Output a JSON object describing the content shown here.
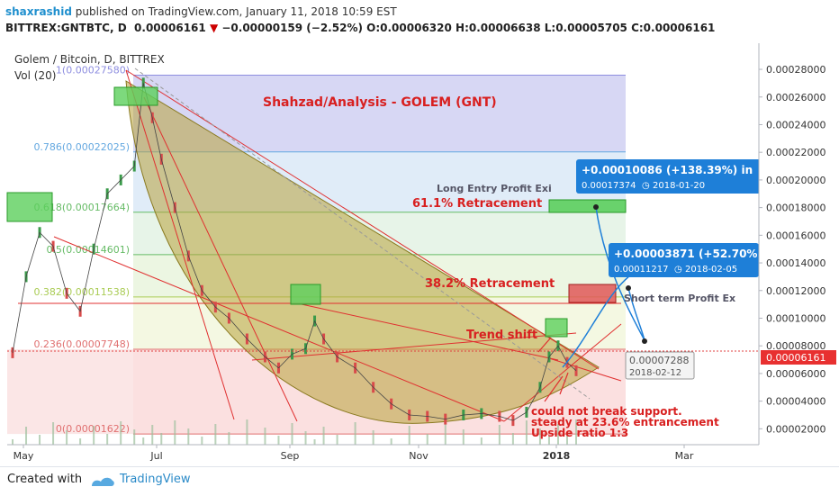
{
  "header": {
    "author": "shaxrashid",
    "published_text": "published on TradingView.com, January 11, 2018 10:59 EST",
    "symbol": "BITTREX:GNTBTC, D",
    "last_price": "0.00006161",
    "change": "−0.00000159 (−2.52%)",
    "ohlc": "O:0.00006320 H:0.00006638 L:0.00005705 C:0.00006161"
  },
  "footer": {
    "created_with": "Created with",
    "brand": "TradingView"
  },
  "chart_data": {
    "type": "line",
    "title": "Shahzad/Analysis - GOLEM  (GNT)",
    "series_label": "Golem / Bitcoin, D, BITTREX",
    "volume_label": "Vol (20)",
    "xlabel": "",
    "ylabel": "",
    "x_ticks": [
      "May",
      "Jul",
      "Sep",
      "Nov",
      "2018",
      "Mar"
    ],
    "y_ticks": [
      "0.00028000",
      "0.00026000",
      "0.00024000",
      "0.00022000",
      "0.00020000",
      "0.00018000",
      "0.00016000",
      "0.00014000",
      "0.00012000",
      "0.00010000",
      "0.00008000",
      "0.00006000",
      "0.00004000",
      "0.00002000"
    ],
    "ylim": [
      8.5e-06,
      0.000295
    ],
    "current_price_label": "0.00006161",
    "fib_levels": [
      {
        "label": "1(0.00027580)",
        "value": 0.0002758,
        "color": "#8e8ee0"
      },
      {
        "label": "0.786(0.00022025)",
        "value": 0.00022025,
        "color": "#64a8e0"
      },
      {
        "label": "0.618(0.00017664)",
        "value": 0.00017664,
        "color": "#66bb66"
      },
      {
        "label": "0.5(0.00014601)",
        "value": 0.00014601,
        "color": "#66bb66"
      },
      {
        "label": "0.382(0.00011538)",
        "value": 0.00011538,
        "color": "#aacc55"
      },
      {
        "label": "0.236(0.00007748)",
        "value": 7.748e-05,
        "color": "#e07070"
      },
      {
        "label": "0(0.00001622)",
        "value": 1.622e-05,
        "color": "#e07070"
      }
    ],
    "price_series": [
      {
        "x": 0,
        "y": 7.5e-05
      },
      {
        "x": 6,
        "y": 0.00013
      },
      {
        "x": 12,
        "y": 0.000162
      },
      {
        "x": 18,
        "y": 0.000152
      },
      {
        "x": 24,
        "y": 0.000118
      },
      {
        "x": 30,
        "y": 0.000105
      },
      {
        "x": 36,
        "y": 0.00015
      },
      {
        "x": 42,
        "y": 0.00019
      },
      {
        "x": 48,
        "y": 0.0002
      },
      {
        "x": 54,
        "y": 0.00021
      },
      {
        "x": 58,
        "y": 0.00027
      },
      {
        "x": 62,
        "y": 0.000245
      },
      {
        "x": 66,
        "y": 0.000215
      },
      {
        "x": 72,
        "y": 0.00018
      },
      {
        "x": 78,
        "y": 0.000145
      },
      {
        "x": 84,
        "y": 0.00012
      },
      {
        "x": 90,
        "y": 0.000108
      },
      {
        "x": 96,
        "y": 0.0001
      },
      {
        "x": 104,
        "y": 8.5e-05
      },
      {
        "x": 112,
        "y": 7.2e-05
      },
      {
        "x": 118,
        "y": 6.4e-05
      },
      {
        "x": 124,
        "y": 7.4e-05
      },
      {
        "x": 130,
        "y": 7.8e-05
      },
      {
        "x": 134,
        "y": 9.8e-05
      },
      {
        "x": 138,
        "y": 8.5e-05
      },
      {
        "x": 144,
        "y": 7.2e-05
      },
      {
        "x": 152,
        "y": 6.4e-05
      },
      {
        "x": 160,
        "y": 5e-05
      },
      {
        "x": 168,
        "y": 3.8e-05
      },
      {
        "x": 176,
        "y": 3e-05
      },
      {
        "x": 184,
        "y": 2.9e-05
      },
      {
        "x": 192,
        "y": 2.7e-05
      },
      {
        "x": 200,
        "y": 3e-05
      },
      {
        "x": 208,
        "y": 3.1e-05
      },
      {
        "x": 216,
        "y": 2.9e-05
      },
      {
        "x": 222,
        "y": 2.6e-05
      },
      {
        "x": 228,
        "y": 3.2e-05
      },
      {
        "x": 234,
        "y": 5e-05
      },
      {
        "x": 238,
        "y": 7.2e-05
      },
      {
        "x": 242,
        "y": 8e-05
      },
      {
        "x": 246,
        "y": 6.8e-05
      },
      {
        "x": 250,
        "y": 6.2e-05
      }
    ],
    "annotations": [
      {
        "text": "Trend shift"
      },
      {
        "text": "61.1% Retracement"
      },
      {
        "text": "38.2% Retracement"
      },
      {
        "text": "Long Entry Profit Exi"
      },
      {
        "text": "Short term Profit Ex"
      },
      {
        "text": "could not break support."
      },
      {
        "text": "steady at 23.6% entrancement"
      },
      {
        "text": "Upside ratio 1:3"
      }
    ],
    "callouts": [
      {
        "line1": "+0.00010086 (+138.39%) in",
        "line2": "0.00017374",
        "line3": "2018-01-20"
      },
      {
        "line1": "+0.00003871 (+52.70%",
        "line2": "0.00011217",
        "line3": "2018-02-05"
      }
    ],
    "date_box": {
      "line1": "0.00007288",
      "line2": "2018-02-12"
    }
  }
}
